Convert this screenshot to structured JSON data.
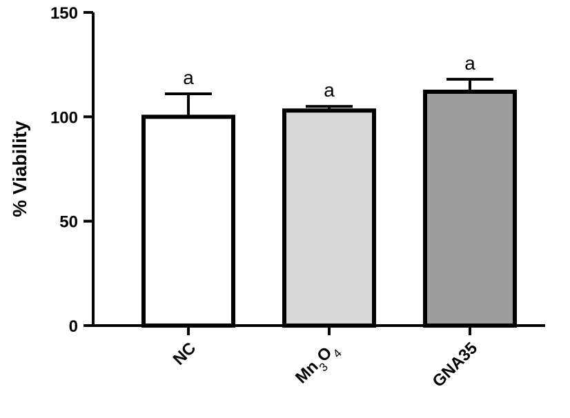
{
  "chart_data": {
    "type": "bar",
    "title": "",
    "xlabel": "",
    "ylabel": "% Viability",
    "ylim": [
      0,
      150
    ],
    "yticks": [
      0,
      50,
      100,
      150
    ],
    "grid": false,
    "categories": [
      {
        "label": "NC",
        "sub": [
          {
            "t": "NC",
            "s": false
          }
        ]
      },
      {
        "label": "Mn3O4",
        "sub": [
          {
            "t": "Mn",
            "s": false
          },
          {
            "t": "3",
            "s": true
          },
          {
            "t": "O",
            "s": false
          },
          {
            "t": "4",
            "s": true
          }
        ]
      },
      {
        "label": "GNA35",
        "sub": [
          {
            "t": "GNA35",
            "s": false
          }
        ]
      }
    ],
    "values": [
      100,
      103,
      112
    ],
    "errors": [
      11,
      2,
      6
    ],
    "significance": [
      "a",
      "a",
      "a"
    ],
    "colors": [
      "#ffffff",
      "#d9d9d9",
      "#9e9e9e"
    ],
    "edge_color": "#000000"
  }
}
